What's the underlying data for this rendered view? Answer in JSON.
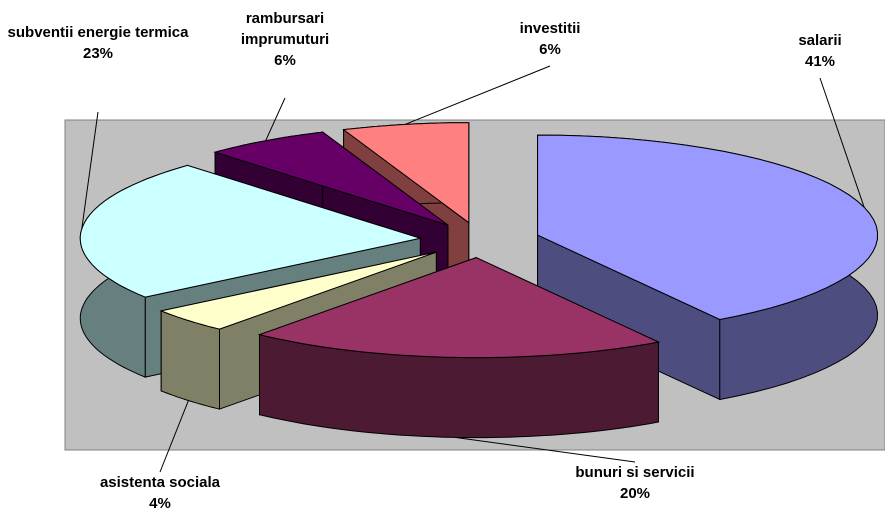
{
  "chart_data": {
    "type": "pie",
    "categories": [
      "salarii",
      "bunuri si servicii",
      "asistenta sociala",
      "subventii energie termica",
      "rambursari imprumuturi",
      "investitii"
    ],
    "values": [
      41,
      20,
      4,
      23,
      6,
      6
    ],
    "value_labels": [
      "41%",
      "20%",
      "4%",
      "23%",
      "6%",
      "6%"
    ],
    "colors": [
      "#9999ff",
      "#993366",
      "#ffffcc",
      "#ccffff",
      "#660066",
      "#ff8080"
    ]
  }
}
